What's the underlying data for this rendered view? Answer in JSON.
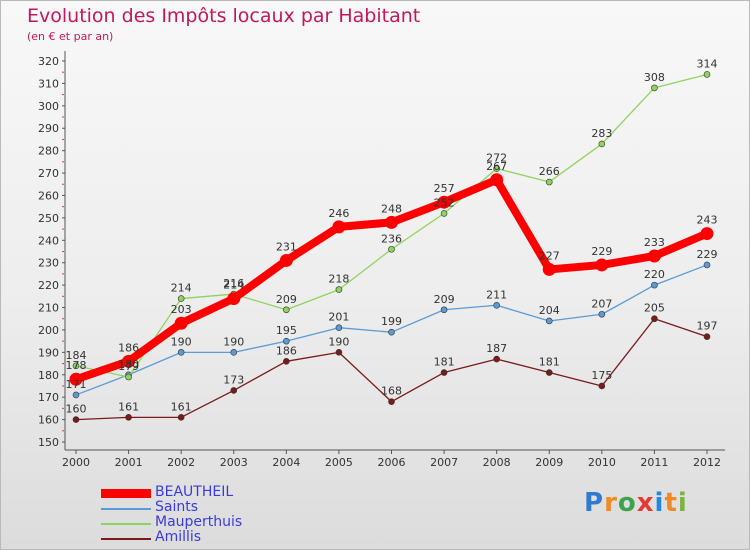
{
  "title": "Evolution des Impôts locaux par Habitant",
  "subtitle": "(en € et par an)",
  "logo": {
    "text": "Proxiti",
    "letter_colors": [
      "#2e7bcf",
      "#f08a24",
      "#3fa34d",
      "#e53935",
      "#1e88e5",
      "#f08a24",
      "#7cb342"
    ]
  },
  "chart_data": {
    "type": "line",
    "title": "Evolution des Impôts locaux par Habitant",
    "subtitle": "(en € et par an)",
    "x": [
      "2000",
      "2001",
      "2002",
      "2003",
      "2004",
      "2005",
      "2006",
      "2007",
      "2008",
      "2009",
      "2010",
      "2011",
      "2012"
    ],
    "ylim": [
      150,
      320
    ],
    "yticks": [
      150,
      160,
      170,
      180,
      190,
      200,
      210,
      220,
      230,
      240,
      250,
      260,
      270,
      280,
      290,
      300,
      310,
      320
    ],
    "grid": false,
    "legend_position": "bottom-left",
    "series": [
      {
        "name": "BEAUTHEIL",
        "color": "#ff0000",
        "style": "thick",
        "values": [
          178,
          186,
          203,
          214,
          231,
          246,
          248,
          257,
          267,
          227,
          229,
          233,
          243
        ],
        "labels": [
          "178",
          "186",
          "203",
          "214",
          "231",
          "246",
          "248",
          "257",
          "267",
          "227",
          "229",
          "233",
          "243"
        ]
      },
      {
        "name": "Saints",
        "color": "#5b9bd5",
        "style": "thin",
        "values": [
          171,
          180,
          190,
          190,
          195,
          201,
          199,
          209,
          211,
          204,
          207,
          220,
          229
        ],
        "labels": [
          "171",
          "180",
          "190",
          "190",
          "195",
          "201",
          "199",
          "209",
          "211",
          "204",
          "207",
          "220",
          "229"
        ]
      },
      {
        "name": "Mauperthuis",
        "color": "#8fd35c",
        "style": "thin",
        "values": [
          184,
          179,
          214,
          216,
          209,
          218,
          236,
          252,
          272,
          266,
          283,
          308,
          314
        ],
        "labels": [
          "184",
          "179",
          "214",
          "216",
          "209",
          "218",
          "236",
          "252",
          "272",
          "266",
          "283",
          "308",
          "314"
        ]
      },
      {
        "name": "Amillis",
        "color": "#7a1a1a",
        "style": "thin",
        "values": [
          160,
          161,
          161,
          173,
          186,
          190,
          168,
          181,
          187,
          181,
          175,
          205,
          197
        ],
        "labels": [
          "160",
          "161",
          "161",
          "173",
          "186",
          "190",
          "168",
          "181",
          "187",
          "181",
          "175",
          "205",
          "197"
        ]
      }
    ]
  }
}
